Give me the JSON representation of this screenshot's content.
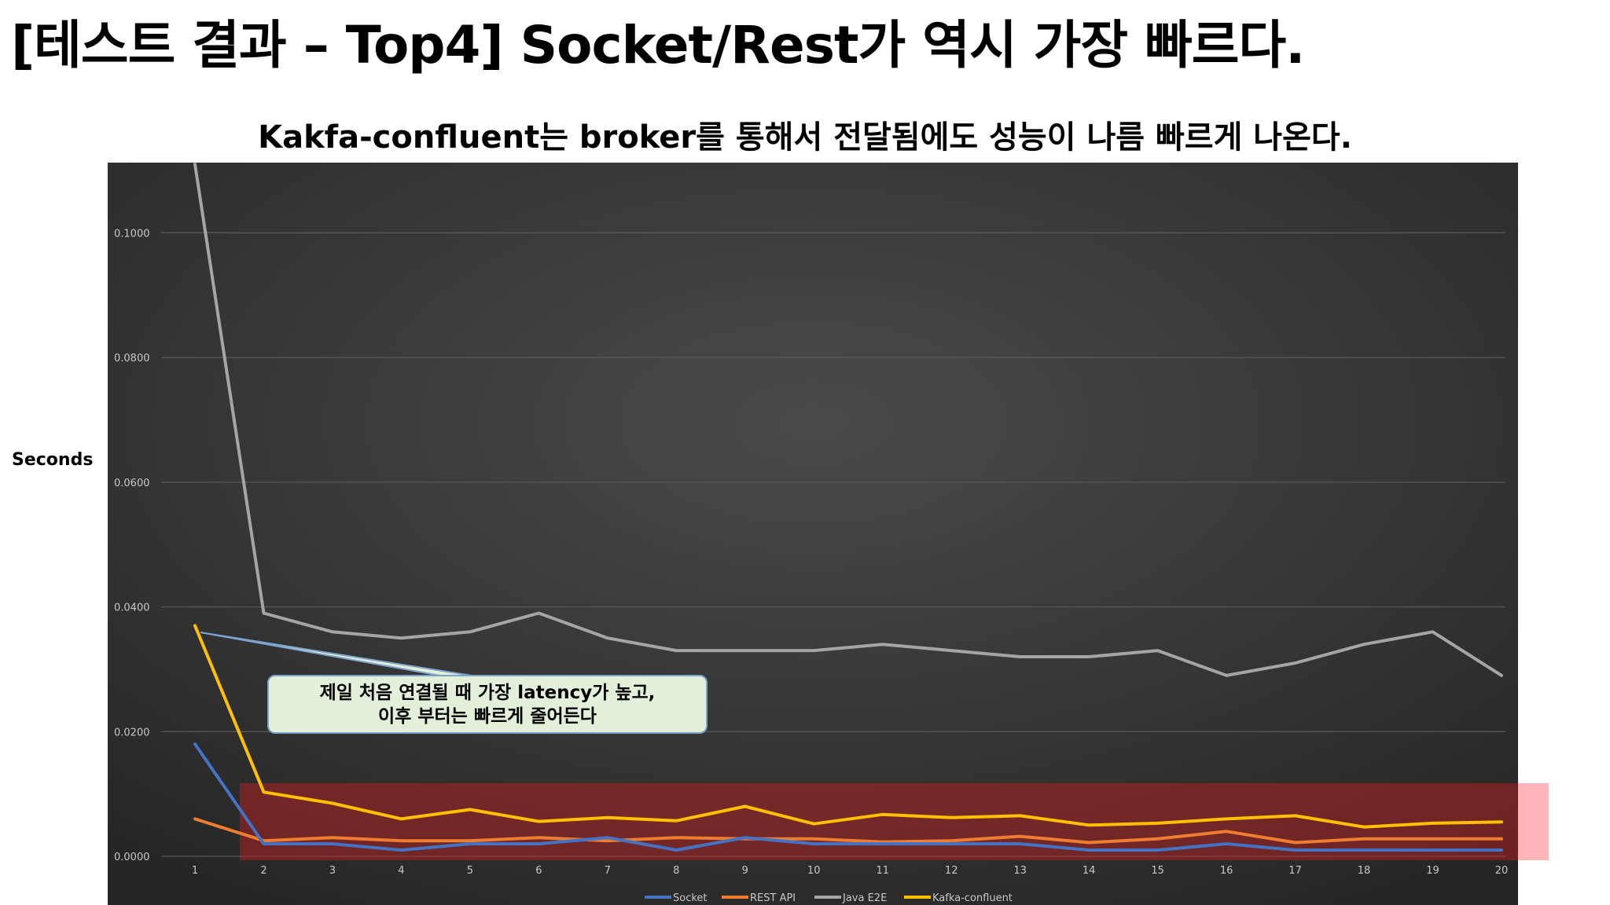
{
  "slide": {
    "title": "[테스트 결과 – Top4] Socket/Rest가 역시 가장 빠르다.",
    "subtitle": "Kakfa-confluent는 broker를 통해서 전달됨에도 성능이 나름 빠르게 나온다.",
    "ylabel": "Seconds",
    "callout_line1": "제일 처음 연결될 때 가장 latency가 높고,",
    "callout_line2": "이후 부터는 빠르게 줄어든다"
  },
  "chart_data": {
    "type": "line",
    "title": "",
    "xlabel": "",
    "ylabel": "Seconds",
    "x": [
      1,
      2,
      3,
      4,
      5,
      6,
      7,
      8,
      9,
      10,
      11,
      12,
      13,
      14,
      15,
      16,
      17,
      18,
      19,
      20
    ],
    "ylim": [
      0,
      0.11
    ],
    "yticks": [
      "0.0000",
      "0.0200",
      "0.0400",
      "0.0600",
      "0.0800",
      "0.1000"
    ],
    "grid": true,
    "legend_position": "bottom",
    "series": [
      {
        "name": "Socket",
        "color": "#4472c4",
        "values": [
          0.018,
          0.002,
          0.002,
          0.001,
          0.002,
          0.002,
          0.003,
          0.001,
          0.003,
          0.002,
          0.002,
          0.002,
          0.002,
          0.001,
          0.001,
          0.002,
          0.001,
          0.001,
          0.001,
          0.001
        ]
      },
      {
        "name": "REST API",
        "color": "#ed7d31",
        "values": [
          0.006,
          0.0025,
          0.003,
          0.0025,
          0.0025,
          0.003,
          0.0025,
          0.003,
          0.0028,
          0.0028,
          0.0023,
          0.0025,
          0.0032,
          0.0022,
          0.0028,
          0.004,
          0.0022,
          0.0028,
          0.0028,
          0.0028
        ]
      },
      {
        "name": "Java E2E",
        "color": "#a5a5a5",
        "values": [
          0.111,
          0.039,
          0.036,
          0.035,
          0.036,
          0.039,
          0.035,
          0.033,
          0.033,
          0.033,
          0.034,
          0.033,
          0.032,
          0.032,
          0.033,
          0.029,
          0.031,
          0.034,
          0.036,
          0.029
        ]
      },
      {
        "name": "Kafka-confluent",
        "color": "#ffc000",
        "values": [
          0.037,
          0.0103,
          0.0085,
          0.006,
          0.0075,
          0.0056,
          0.0062,
          0.0057,
          0.008,
          0.0052,
          0.0067,
          0.0062,
          0.0065,
          0.005,
          0.0053,
          0.006,
          0.0065,
          0.0047,
          0.0053,
          0.0055
        ]
      }
    ]
  }
}
